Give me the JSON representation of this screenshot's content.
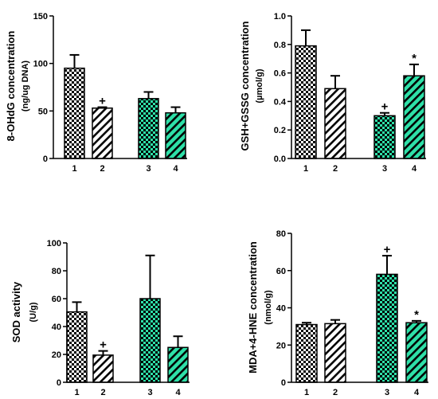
{
  "colors": {
    "green": "#2ee0a8",
    "black": "#000000",
    "white": "#ffffff"
  },
  "chart_data": [
    {
      "type": "bar",
      "categories": [
        "1",
        "2",
        "3",
        "4"
      ],
      "patterns": [
        "checker",
        "diag",
        "green-checker",
        "green-diag"
      ],
      "values": [
        95,
        53,
        63,
        48
      ],
      "errors": [
        14,
        1,
        7,
        6
      ],
      "annotations": [
        "",
        "+",
        "",
        ""
      ],
      "ylabel": "8-OHdG concentration",
      "yunit": "(ng/ug DNA)",
      "ylim": [
        0,
        150
      ],
      "yticks": [
        "0",
        "50",
        "100",
        "150"
      ]
    },
    {
      "type": "bar",
      "categories": [
        "1",
        "2",
        "3",
        "4"
      ],
      "patterns": [
        "checker",
        "diag",
        "green-checker",
        "green-diag"
      ],
      "values": [
        0.79,
        0.49,
        0.3,
        0.58
      ],
      "errors": [
        0.11,
        0.09,
        0.02,
        0.08
      ],
      "annotations": [
        "",
        "",
        "+",
        "*"
      ],
      "ylabel": "GSH+GSSG concentration",
      "yunit": "(µmol/g)",
      "ylim": [
        0,
        1.0
      ],
      "yticks": [
        "0.0",
        "0.2",
        "0.4",
        "0.6",
        "0.8",
        "1.0"
      ]
    },
    {
      "type": "bar",
      "categories": [
        "1",
        "2",
        "3",
        "4"
      ],
      "patterns": [
        "checker",
        "diag",
        "green-checker",
        "green-diag"
      ],
      "values": [
        50.5,
        19.5,
        60,
        25
      ],
      "errors": [
        7,
        3,
        31,
        8
      ],
      "annotations": [
        "",
        "+",
        "",
        ""
      ],
      "ylabel": "SOD activity",
      "yunit": "(U/g)",
      "ylim": [
        0,
        100
      ],
      "yticks": [
        "0",
        "20",
        "40",
        "60",
        "80",
        "100"
      ]
    },
    {
      "type": "bar",
      "categories": [
        "1",
        "2",
        "3",
        "4"
      ],
      "patterns": [
        "checker",
        "diag",
        "green-checker",
        "green-diag"
      ],
      "values": [
        31,
        31.5,
        58,
        32
      ],
      "errors": [
        1,
        2,
        10,
        1
      ],
      "annotations": [
        "",
        "",
        "+",
        "*"
      ],
      "ylabel": "MDA+4-HNE concentration",
      "yunit": "(nmol/g)",
      "ylim": [
        0,
        80
      ],
      "yticks": [
        "0",
        "20",
        "40",
        "60",
        "80"
      ]
    }
  ]
}
